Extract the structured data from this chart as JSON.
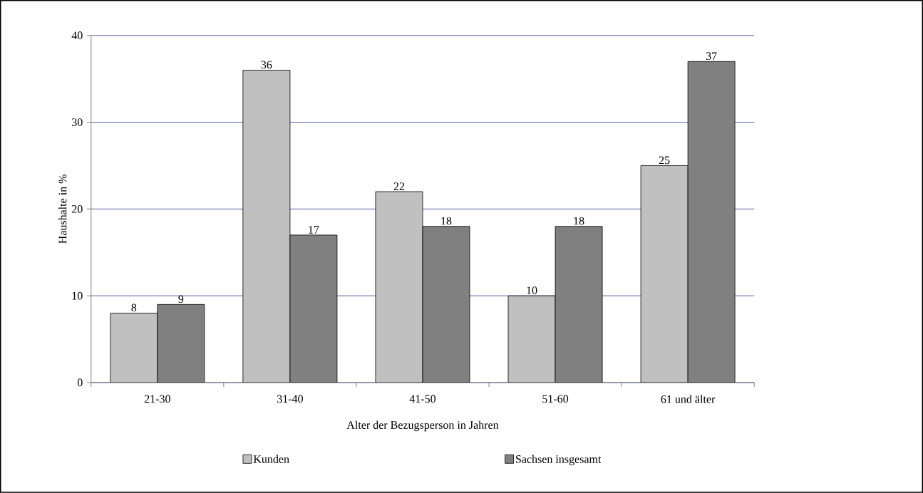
{
  "chart_data": {
    "type": "bar",
    "xlabel": "Alter der Bezugsperson in Jahren",
    "ylabel": "Haushalte in %",
    "categories": [
      "21-30",
      "31-40",
      "41-50",
      "51-60",
      "61 und älter"
    ],
    "series": [
      {
        "name": "Kunden",
        "color": "#c0c0c0",
        "values": [
          8,
          36,
          22,
          10,
          25
        ]
      },
      {
        "name": "Sachsen insgesamt",
        "color": "#808080",
        "values": [
          9,
          17,
          18,
          18,
          37
        ]
      }
    ],
    "ylim": [
      0,
      40
    ],
    "yticks": [
      0,
      10,
      20,
      30,
      40
    ],
    "grid": "y",
    "legend": "bottom",
    "data_labels": true
  }
}
